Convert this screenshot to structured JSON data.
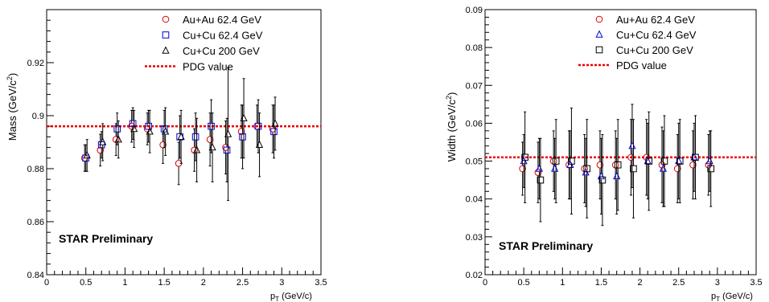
{
  "pdg_label": "PDG value",
  "chart_data": [
    {
      "type": "scatter",
      "ylabel_main": "Mass (GeV/c",
      "ylabel_sup": "2",
      "ylabel_end": ")",
      "xlabel_main": "p",
      "xlabel_sub": "T",
      "xlabel_units": " (GeV/c)",
      "annotation": "STAR Preliminary",
      "xlim": [
        0,
        3.5
      ],
      "ylim": [
        0.84,
        0.94
      ],
      "xticks": [
        "0",
        "0.5",
        "1",
        "1.5",
        "2",
        "2.5",
        "3",
        "3.5"
      ],
      "yticks": [
        "0.84",
        "0.86",
        "0.88",
        "0.9",
        "0.92"
      ],
      "pdg_value": 0.896,
      "series": [
        {
          "name": "Au+Au 62.4 GeV",
          "marker": "circle",
          "color": "#dd0000",
          "x": [
            0.5,
            0.7,
            0.9,
            1.1,
            1.3,
            1.5,
            1.7,
            1.9,
            2.1,
            2.3,
            2.5,
            2.7,
            2.9
          ],
          "y": [
            0.884,
            0.887,
            0.891,
            0.896,
            0.895,
            0.889,
            0.882,
            0.887,
            0.891,
            0.888,
            0.894,
            0.896,
            0.895
          ],
          "err": [
            0.005,
            0.006,
            0.006,
            0.006,
            0.006,
            0.007,
            0.008,
            0.008,
            0.01,
            0.01,
            0.01,
            0.008,
            0.009
          ]
        },
        {
          "name": "Cu+Cu 62.4 GeV",
          "marker": "square",
          "color": "#0000dd",
          "x": [
            0.5,
            0.7,
            0.9,
            1.1,
            1.3,
            1.5,
            1.7,
            1.9,
            2.1,
            2.3,
            2.5,
            2.7,
            2.9
          ],
          "y": [
            0.884,
            0.889,
            0.895,
            0.897,
            0.896,
            0.895,
            0.892,
            0.892,
            0.896,
            0.887,
            0.892,
            0.896,
            0.894
          ],
          "err": [
            0.005,
            0.005,
            0.006,
            0.006,
            0.006,
            0.007,
            0.008,
            0.009,
            0.01,
            0.012,
            0.012,
            0.01,
            0.01
          ]
        },
        {
          "name": "Cu+Cu 200 GeV",
          "marker": "triangle",
          "color": "#000000",
          "x": [
            0.5,
            0.7,
            0.9,
            1.1,
            1.3,
            1.5,
            1.7,
            1.9,
            2.1,
            2.3,
            2.5,
            2.7,
            2.9
          ],
          "y": [
            0.885,
            0.89,
            0.891,
            0.895,
            0.894,
            0.894,
            0.892,
            0.887,
            0.888,
            0.893,
            0.899,
            0.889,
            0.897
          ],
          "err": [
            0.006,
            0.007,
            0.007,
            0.007,
            0.008,
            0.009,
            0.01,
            0.012,
            0.013,
            0.025,
            0.015,
            0.012,
            0.01
          ]
        }
      ]
    },
    {
      "type": "scatter",
      "ylabel_main": "Width (GeV/c",
      "ylabel_sup": "2",
      "ylabel_end": ")",
      "xlabel_main": "p",
      "xlabel_sub": "T",
      "xlabel_units": " (GeV/c)",
      "annotation": "STAR Preliminary",
      "xlim": [
        0,
        3.5
      ],
      "ylim": [
        0.02,
        0.09
      ],
      "xticks": [
        "0",
        "0.5",
        "1",
        "1.5",
        "2",
        "2.5",
        "3",
        "3.5"
      ],
      "yticks": [
        "0.02",
        "0.03",
        "0.04",
        "0.05",
        "0.06",
        "0.07",
        "0.08",
        "0.09"
      ],
      "pdg_value": 0.051,
      "series": [
        {
          "name": "Au+Au 62.4 GeV",
          "marker": "circle",
          "color": "#dd0000",
          "x": [
            0.5,
            0.7,
            0.9,
            1.1,
            1.3,
            1.5,
            1.7,
            1.9,
            2.1,
            2.3,
            2.5,
            2.7,
            2.9
          ],
          "y": [
            0.048,
            0.047,
            0.05,
            0.049,
            0.048,
            0.049,
            0.049,
            0.051,
            0.051,
            0.049,
            0.048,
            0.049,
            0.049
          ],
          "err": [
            0.007,
            0.008,
            0.008,
            0.009,
            0.009,
            0.009,
            0.009,
            0.01,
            0.01,
            0.01,
            0.009,
            0.009,
            0.008
          ]
        },
        {
          "name": "Cu+Cu 62.4 GeV",
          "marker": "triangle",
          "color": "#0000dd",
          "x": [
            0.5,
            0.7,
            0.9,
            1.1,
            1.3,
            1.5,
            1.7,
            1.9,
            2.1,
            2.3,
            2.5,
            2.7,
            2.9
          ],
          "y": [
            0.05,
            0.048,
            0.048,
            0.049,
            0.047,
            0.046,
            0.046,
            0.054,
            0.05,
            0.048,
            0.05,
            0.051,
            0.05
          ],
          "err": [
            0.007,
            0.008,
            0.008,
            0.009,
            0.009,
            0.01,
            0.01,
            0.011,
            0.01,
            0.01,
            0.01,
            0.009,
            0.008
          ]
        },
        {
          "name": "Cu+Cu 200 GeV",
          "marker": "square",
          "color": "#000000",
          "x": [
            0.5,
            0.7,
            0.9,
            1.1,
            1.3,
            1.5,
            1.7,
            1.9,
            2.1,
            2.3,
            2.5,
            2.7,
            2.9
          ],
          "y": [
            0.051,
            0.045,
            0.05,
            0.05,
            0.048,
            0.045,
            0.049,
            0.048,
            0.05,
            0.05,
            0.05,
            0.051,
            0.048
          ],
          "err": [
            0.012,
            0.011,
            0.011,
            0.014,
            0.013,
            0.012,
            0.012,
            0.013,
            0.013,
            0.012,
            0.011,
            0.011,
            0.01
          ]
        }
      ]
    }
  ]
}
